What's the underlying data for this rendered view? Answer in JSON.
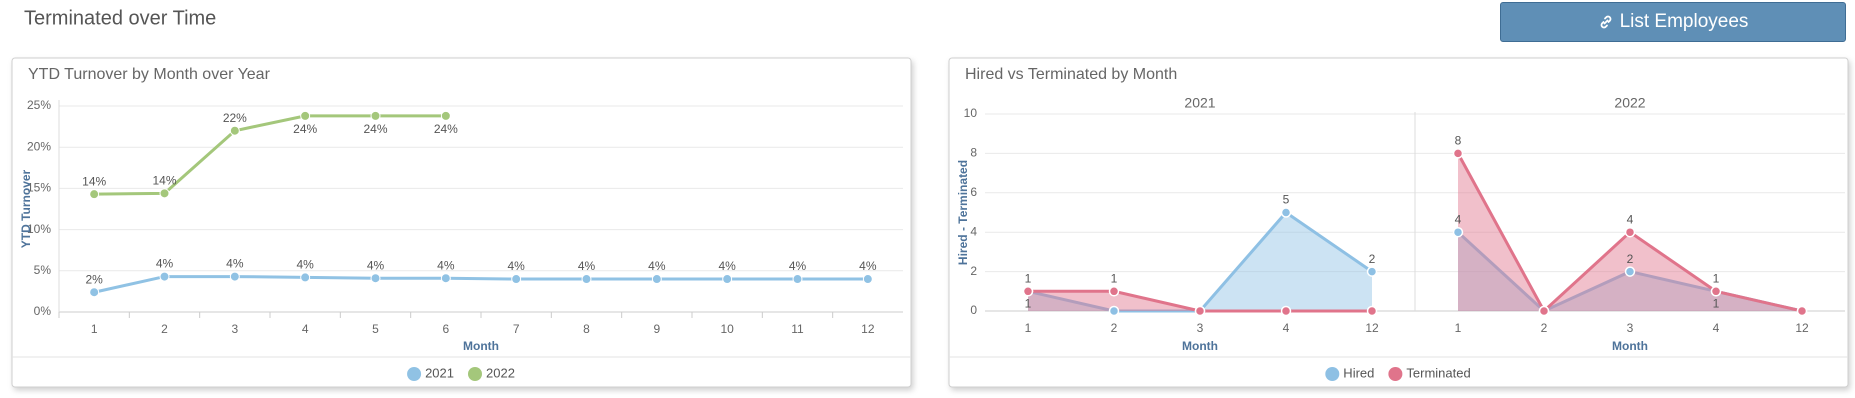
{
  "page": {
    "title": "Terminated over Time",
    "button": "List Employees"
  },
  "chart_data": [
    {
      "type": "line",
      "title": "YTD Turnover by Month over Year",
      "x_label": "Month",
      "y_label": "YTD Turnover",
      "categories": [
        "1",
        "2",
        "3",
        "4",
        "5",
        "6",
        "7",
        "8",
        "9",
        "10",
        "11",
        "12"
      ],
      "series": [
        {
          "name": "2021",
          "color": "#90c2e4",
          "values": [
            2.4,
            4.3,
            4.3,
            4.2,
            4.1,
            4.1,
            4.0,
            4.0,
            4.0,
            4.0,
            4.0,
            4.0
          ],
          "value_labels": [
            "2%",
            "4%",
            "4%",
            "4%",
            "4%",
            "4%",
            "4%",
            "4%",
            "4%",
            "4%",
            "4%",
            "4%"
          ]
        },
        {
          "name": "2022",
          "color": "#a4c77b",
          "values": [
            14.3,
            14.4,
            22.0,
            23.8,
            23.8,
            23.8,
            null,
            null,
            null,
            null,
            null,
            null
          ],
          "value_labels": [
            "14%",
            "14%",
            "22%",
            "24%",
            "24%",
            "24%",
            null,
            null,
            null,
            null,
            null,
            null
          ]
        }
      ],
      "ylim": [
        0,
        25
      ],
      "yticks": [
        {
          "value": 0,
          "label": "0%"
        },
        {
          "value": 5,
          "label": "5%"
        },
        {
          "value": 10,
          "label": "10%"
        },
        {
          "value": 15,
          "label": "15%"
        },
        {
          "value": 20,
          "label": "20%"
        },
        {
          "value": 25,
          "label": "25%"
        }
      ],
      "grid": true,
      "legend": "bottom"
    },
    {
      "type": "area",
      "title": "Hired vs Terminated by Month",
      "x_label": "Month",
      "y_label": "Hired - Terminated",
      "series": [
        {
          "name": "Hired",
          "color": "#8ec0e4"
        },
        {
          "name": "Terminated",
          "color": "#e0748b"
        }
      ],
      "panels": [
        {
          "title": "2021",
          "categories": [
            "1",
            "2",
            "3",
            "4",
            "12"
          ],
          "values": [
            [
              1,
              0,
              0,
              5,
              2
            ],
            [
              1,
              1,
              0,
              0,
              0
            ]
          ]
        },
        {
          "title": "2022",
          "categories": [
            "1",
            "2",
            "3",
            "4",
            "12"
          ],
          "values": [
            [
              4,
              0,
              2,
              1,
              0
            ],
            [
              8,
              0,
              4,
              1,
              0
            ]
          ]
        }
      ],
      "ylim": [
        0,
        10
      ],
      "yticks": [
        0,
        2,
        4,
        6,
        8,
        10
      ],
      "grid": true,
      "legend": "bottom"
    }
  ]
}
